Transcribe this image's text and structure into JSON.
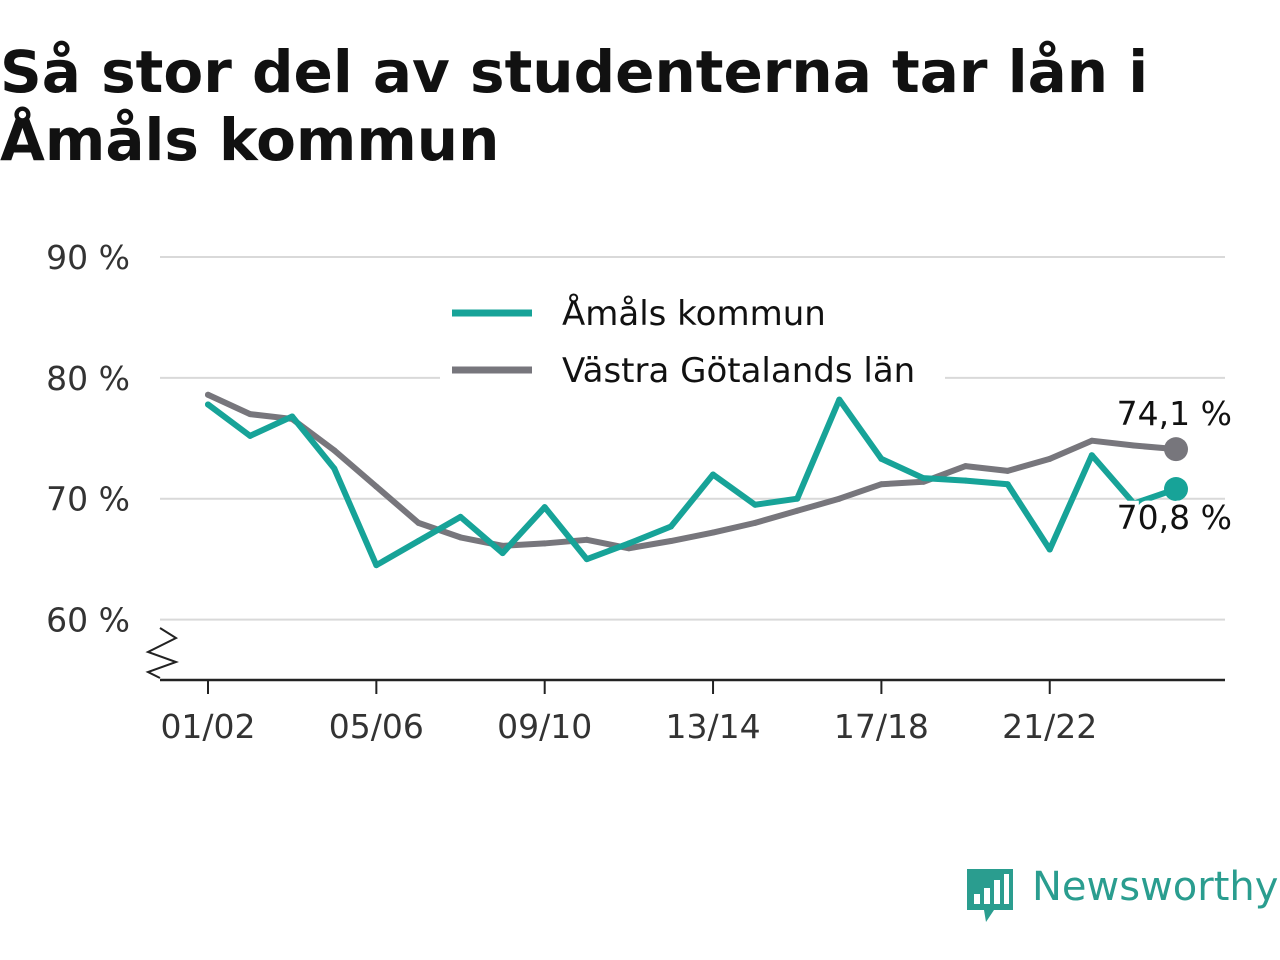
{
  "title": "Så stor del av studenterna tar lån i Åmåls kommun",
  "brand": {
    "name": "Newsworthy",
    "icon": "newsworthy-logo-icon",
    "color": "#2a9d8f"
  },
  "chart_data": {
    "type": "line",
    "title": "Så stor del av studenterna tar lån i Åmåls kommun",
    "xlabel": "",
    "ylabel": "",
    "ylim": [
      55,
      90
    ],
    "yticks": [
      60,
      70,
      80,
      90
    ],
    "ytick_labels": [
      "60 %",
      "70 %",
      "80 %",
      "90 %"
    ],
    "y_axis_break": true,
    "x": [
      "01/02",
      "02/03",
      "03/04",
      "04/05",
      "05/06",
      "06/07",
      "07/08",
      "08/09",
      "09/10",
      "10/11",
      "11/12",
      "12/13",
      "13/14",
      "14/15",
      "15/16",
      "16/17",
      "17/18",
      "18/19",
      "19/20",
      "20/21",
      "21/22",
      "22/23",
      "23/24",
      "24/25"
    ],
    "xtick_labels": [
      "01/02",
      "05/06",
      "09/10",
      "13/14",
      "17/18",
      "21/22"
    ],
    "grid": true,
    "legend_position": "top-center",
    "series": [
      {
        "name": "Åmåls kommun",
        "color": "#17a398",
        "values": [
          77.8,
          75.2,
          76.8,
          72.5,
          64.5,
          66.5,
          68.5,
          65.5,
          69.3,
          65.0,
          66.3,
          67.7,
          72.0,
          69.5,
          70.0,
          78.2,
          73.3,
          71.7,
          71.5,
          71.2,
          65.8,
          73.6,
          69.6,
          70.8
        ],
        "end_label": "70,8 %"
      },
      {
        "name": "Västra Götalands län",
        "color": "#77767c",
        "values": [
          78.6,
          77.0,
          76.6,
          74.0,
          71.0,
          68.0,
          66.8,
          66.1,
          66.3,
          66.6,
          65.9,
          66.5,
          67.2,
          68.0,
          69.0,
          70.0,
          71.2,
          71.4,
          72.7,
          72.3,
          73.3,
          74.8,
          74.4,
          74.1
        ],
        "end_label": "74,1 %"
      }
    ]
  }
}
